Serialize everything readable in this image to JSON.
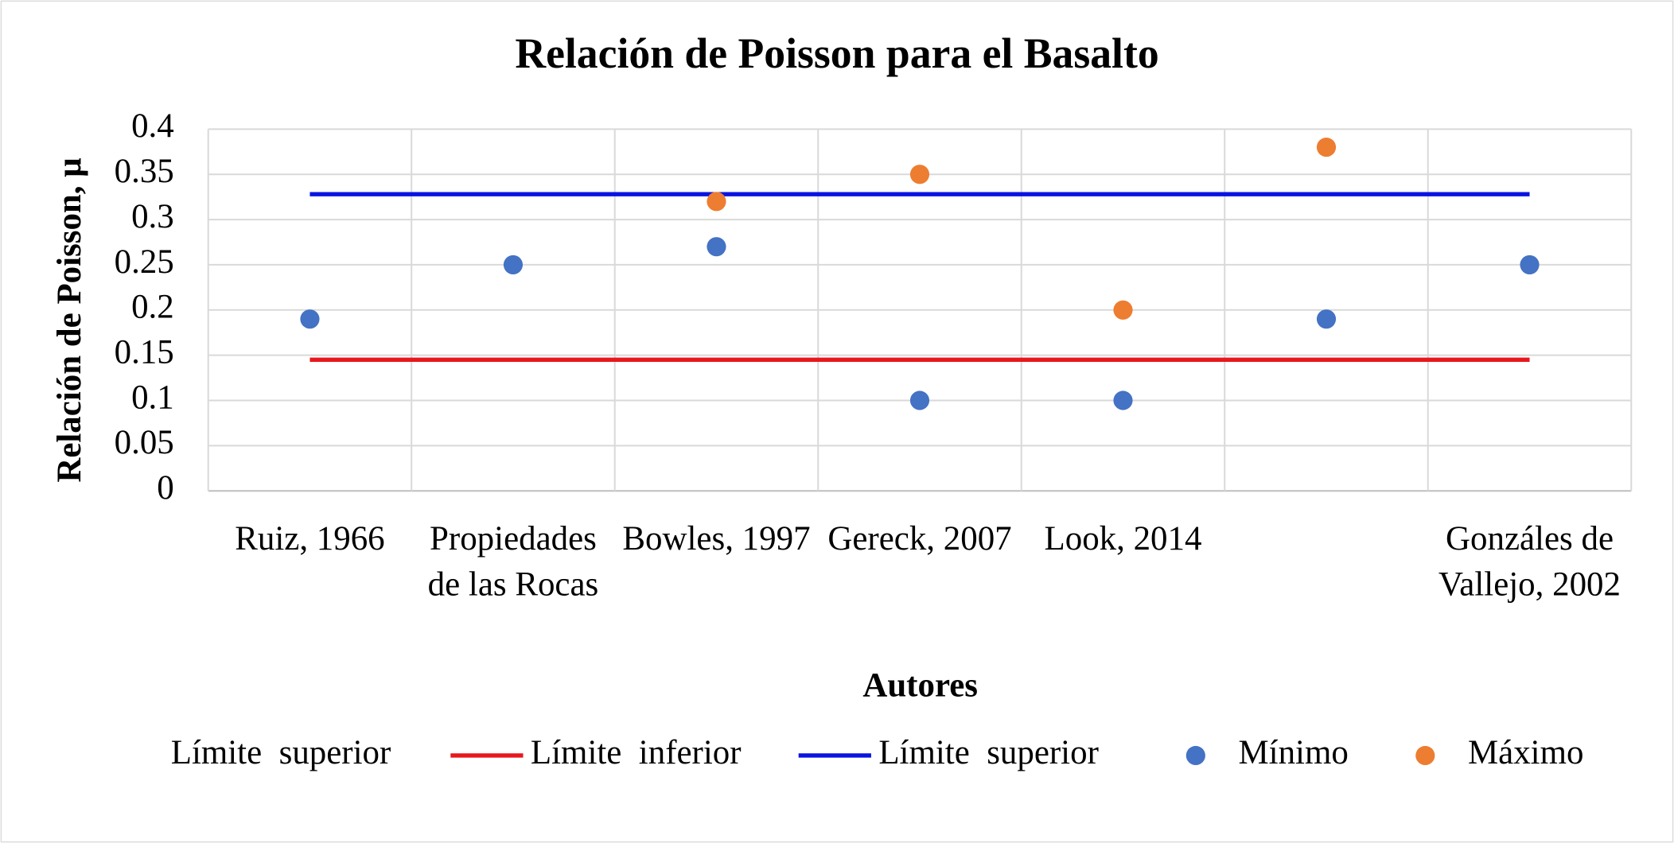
{
  "chart_data": {
    "type": "scatter",
    "title": "Relación de Poisson para el Basalto",
    "x_label": "Autores",
    "y_label": "Relación de Poisson, μ",
    "categories": [
      "Ruiz, 1966",
      "Propiedades de las Rocas",
      "Bowles, 1997",
      "Gereck, 2007",
      "Look, 2014",
      null,
      "Gonzáles de Vallejo, 2002"
    ],
    "series": [
      {
        "name": "Límite superior",
        "values": [
          null,
          null,
          null,
          null,
          null,
          null,
          null
        ]
      },
      {
        "name": "Límite inferior",
        "style": "line",
        "color": "#e8171c",
        "values": [
          0.145,
          0.145,
          0.145,
          0.145,
          0.145,
          0.145,
          0.145
        ]
      },
      {
        "name": "Límite superior",
        "style": "line",
        "color": "#0a14e0",
        "values": [
          0.328,
          0.328,
          0.328,
          0.328,
          0.328,
          0.328,
          0.328
        ]
      },
      {
        "name": "Mínimo",
        "style": "marker",
        "color": "#4472c4",
        "values": [
          0.19,
          0.25,
          0.27,
          0.1,
          0.1,
          0.19,
          0.25
        ]
      },
      {
        "name": "Máximo",
        "style": "marker",
        "color": "#ed7d31",
        "values": [
          null,
          null,
          0.32,
          0.35,
          0.2,
          0.38,
          null
        ]
      }
    ],
    "ylim": [
      0,
      0.4
    ],
    "yticks": [
      0,
      0.05,
      0.1,
      0.15,
      0.2,
      0.25,
      0.3,
      0.35,
      0.4
    ],
    "grid": true,
    "legend": "bottom"
  }
}
